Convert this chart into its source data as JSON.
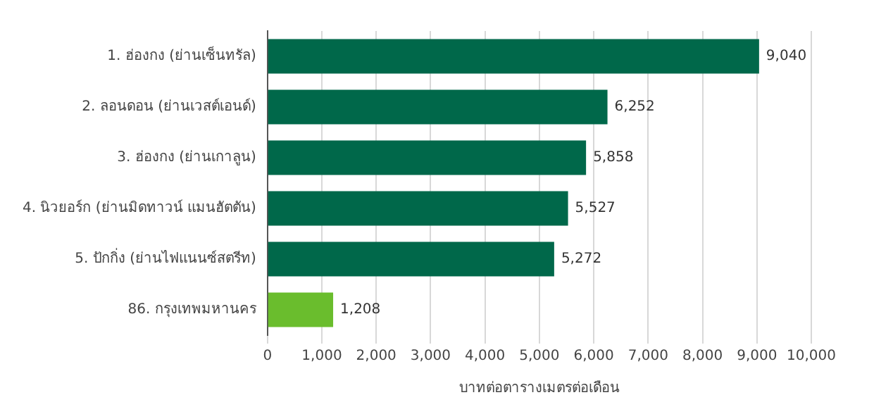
{
  "chart_data": {
    "type": "bar",
    "orientation": "horizontal",
    "categories": [
      "1. ฮ่องกง (ย่านเซ็นทรัล)",
      "2. ลอนดอน (ย่านเวสต์เอนด์)",
      "3. ฮ่องกง (ย่านเกาลูน)",
      "4. นิวยอร์ก (ย่านมิดทาวน์ แมนฮัตตัน)",
      "5. ปักกิ่ง (ย่านไฟแนนซ์สตรีท)",
      "86. กรุงเทพมหานคร"
    ],
    "values": [
      9040,
      6252,
      5858,
      5527,
      5272,
      1208
    ],
    "colors": [
      "#00684a",
      "#00684a",
      "#00684a",
      "#00684a",
      "#00684a",
      "#6abd2d"
    ],
    "xlabel": "บาทต่อตารางเมตรต่อเดือน",
    "xlim": [
      0,
      10000
    ],
    "xticks": [
      {
        "value": 0,
        "label": "0"
      },
      {
        "value": 1000,
        "label": "1,000"
      },
      {
        "value": 2000,
        "label": "2,000"
      },
      {
        "value": 3000,
        "label": "3,000"
      },
      {
        "value": 4000,
        "label": "4,000"
      },
      {
        "value": 5000,
        "label": "5,000"
      },
      {
        "value": 6000,
        "label": "6,000"
      },
      {
        "value": 7000,
        "label": "7,000"
      },
      {
        "value": 8000,
        "label": "8,000"
      },
      {
        "value": 9000,
        "label": "9,000"
      },
      {
        "value": 10000,
        "label": "10,000"
      }
    ],
    "value_labels": [
      "9,040",
      "6,252",
      "5,858",
      "5,527",
      "5,272",
      "1,208"
    ],
    "grid": "x",
    "legend": false
  }
}
